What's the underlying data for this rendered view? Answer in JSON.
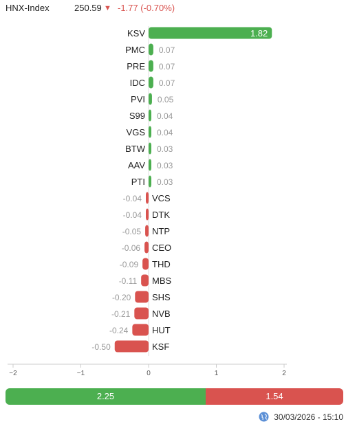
{
  "header": {
    "index_name": "HNX-Index",
    "index_value": "250.59",
    "change": "-1.77 (-0.70%)",
    "arrow_icon": "triangle-down-icon"
  },
  "colors": {
    "positive": "#4caf50",
    "negative": "#d9534f",
    "value_text": "#999999"
  },
  "chart_data": {
    "type": "bar",
    "orientation": "horizontal",
    "title": "",
    "xlabel": "",
    "ylabel": "",
    "categories": [
      "KSV",
      "PMC",
      "PRE",
      "IDC",
      "PVI",
      "S99",
      "VGS",
      "BTW",
      "AAV",
      "PTI",
      "VCS",
      "DTK",
      "NTP",
      "CEO",
      "THD",
      "MBS",
      "SHS",
      "NVB",
      "HUT",
      "KSF"
    ],
    "values": [
      1.82,
      0.07,
      0.07,
      0.07,
      0.05,
      0.04,
      0.04,
      0.03,
      0.03,
      0.03,
      -0.04,
      -0.04,
      -0.05,
      -0.06,
      -0.09,
      -0.11,
      -0.2,
      -0.21,
      -0.24,
      -0.5
    ],
    "value_labels": [
      "1.82",
      "0.07",
      "0.07",
      "0.07",
      "0.05",
      "0.04",
      "0.04",
      "0.03",
      "0.03",
      "0.03",
      "-0.04",
      "-0.04",
      "-0.05",
      "-0.06",
      "-0.09",
      "-0.11",
      "-0.20",
      "-0.21",
      "-0.24",
      "-0.50"
    ],
    "xlim": [
      -2,
      2
    ],
    "xticks": [
      -2,
      -1,
      0,
      1,
      2
    ],
    "xtick_labels": [
      "−2",
      "−1",
      "0",
      "1",
      "2"
    ],
    "grid": false
  },
  "breadth": {
    "advance_value": 2.25,
    "decline_value": 1.54,
    "advance_label": "2.25",
    "decline_label": "1.54"
  },
  "footer": {
    "timestamp": "30/03/2026 - 15:10",
    "icon": "globe-icon"
  }
}
